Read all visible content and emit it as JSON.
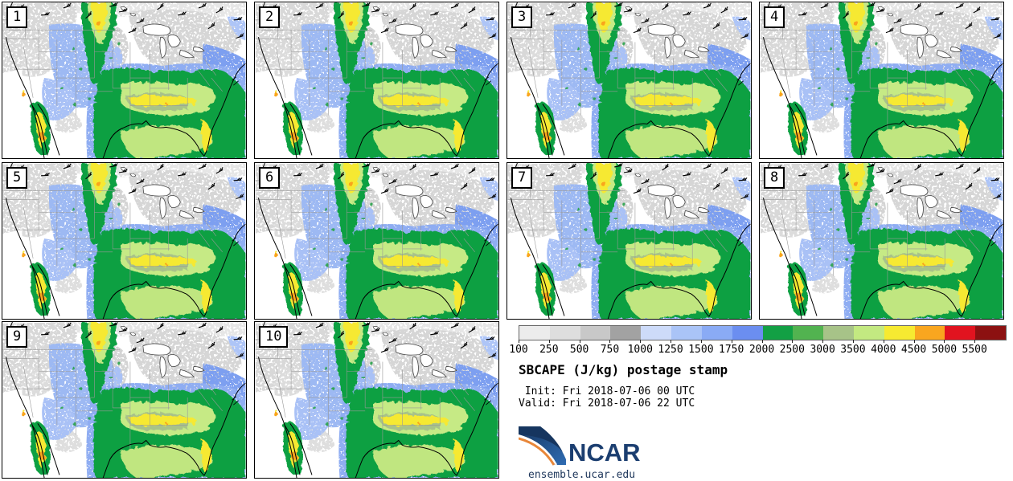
{
  "page": {
    "background": "#ffffff"
  },
  "panels": [
    {
      "label": "1"
    },
    {
      "label": "2"
    },
    {
      "label": "3"
    },
    {
      "label": "4"
    },
    {
      "label": "5"
    },
    {
      "label": "6"
    },
    {
      "label": "7"
    },
    {
      "label": "8"
    },
    {
      "label": "9"
    },
    {
      "label": "10"
    }
  ],
  "legend": {
    "title": "SBCAPE (J/kg) postage stamp",
    "init_line": " Init: Fri 2018-07-06 00 UTC",
    "valid_line": "Valid: Fri 2018-07-06 22 UTC",
    "tick_labels": [
      "100",
      "250",
      "500",
      "750",
      "1000",
      "1250",
      "1500",
      "1750",
      "2000",
      "2500",
      "3000",
      "3500",
      "4000",
      "4500",
      "5000",
      "5500"
    ],
    "colors": [
      "#ececec",
      "#dedede",
      "#c8c8c8",
      "#a2a2a2",
      "#cddbf9",
      "#aac4f7",
      "#8aabf5",
      "#6b8ef0",
      "#12a044",
      "#52b350",
      "#a7c388",
      "#c3e981",
      "#f6ea31",
      "#f9a61f",
      "#e1131f",
      "#8c1111"
    ]
  },
  "branding": {
    "logo_text": "NCAR",
    "url": "ensemble.ucar.edu",
    "logo_color": "#1b3e70",
    "logo_accent": "#e8873a",
    "url_color": "#223a5e"
  }
}
